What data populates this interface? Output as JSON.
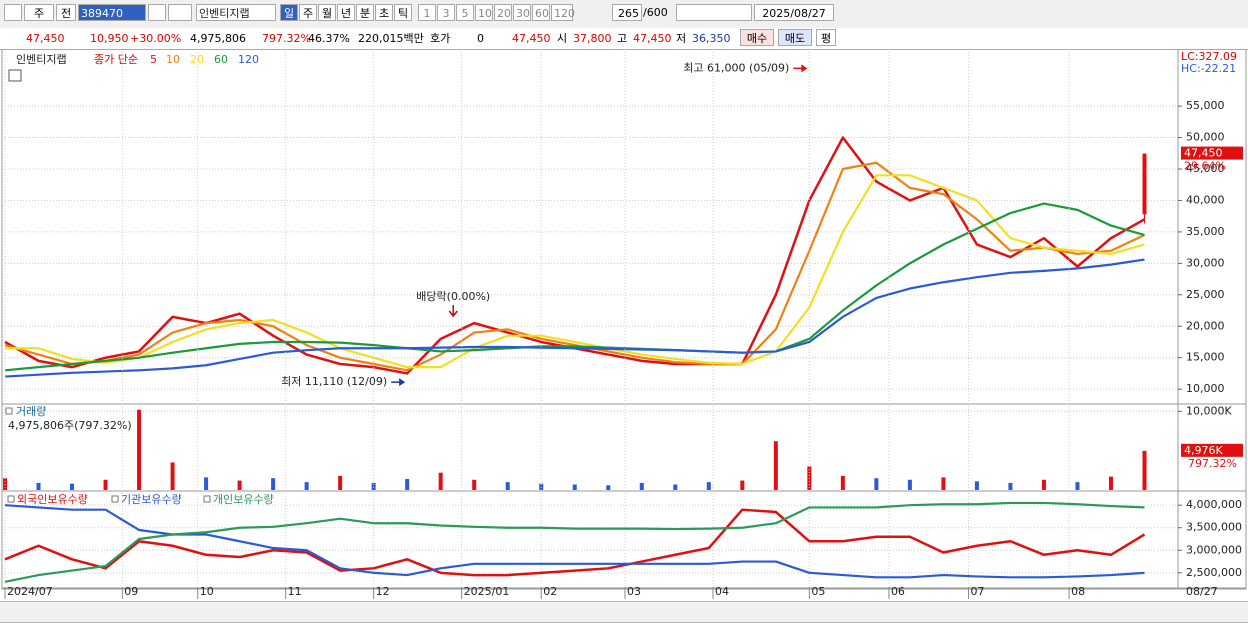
{
  "toolbar": {
    "market": "주",
    "prev": "전",
    "code": "389470",
    "name": "인벤티지랩",
    "periods": [
      "일",
      "주",
      "월",
      "년",
      "분",
      "초",
      "틱"
    ],
    "intervals": [
      "1",
      "3",
      "5",
      "10",
      "20",
      "30",
      "60",
      "120"
    ],
    "count": "265",
    "count_max": "/600",
    "date": "2025/08/27"
  },
  "infobar": {
    "price": "47,450",
    "change": "10,950",
    "change_pct": "+30.00%",
    "volume": "4,975,806",
    "volume_pct": "797.32%",
    "turnover": "46.37%",
    "amount": "220,015백만",
    "quote_label": "호가",
    "quote": "0",
    "quote_price": "47,450",
    "open_label": "시",
    "open": "37,800",
    "high_label": "고",
    "high": "47,450",
    "low_label": "저",
    "low": "36,350",
    "buy": "매수",
    "sell": "매도",
    "avg": "평"
  },
  "chart_data": [
    {
      "type": "line",
      "title": "인벤티지랩",
      "legend_prefix": "종가 단순",
      "lc": "LC:327.09",
      "hc": "HC:-22.21",
      "x": [
        0,
        8,
        16,
        24,
        32,
        40,
        48,
        56,
        64,
        72,
        80,
        88,
        96,
        104,
        112,
        120,
        128,
        136,
        144,
        152,
        160,
        168,
        176,
        184,
        192,
        200,
        208,
        216,
        224,
        232,
        240,
        248,
        256,
        264,
        272
      ],
      "xlim": [
        0,
        280
      ],
      "ylim": [
        7800,
        63600
      ],
      "yticks": [
        {
          "value": 55000,
          "label": "55,000"
        },
        {
          "value": 50000,
          "label": "50,000"
        },
        {
          "value": 45000,
          "label": "45,000"
        },
        {
          "value": 40000,
          "label": "40,000"
        },
        {
          "value": 35000,
          "label": "35,000"
        },
        {
          "value": 30000,
          "label": "30,000"
        },
        {
          "value": 25000,
          "label": "25,000"
        },
        {
          "value": 20000,
          "label": "20,000"
        },
        {
          "value": 15000,
          "label": "15,000"
        },
        {
          "value": 10000,
          "label": "10,000"
        }
      ],
      "series": [
        {
          "name": "5",
          "color": "#e01010",
          "values": [
            17500,
            14500,
            13500,
            15000,
            16000,
            21500,
            20500,
            22000,
            18500,
            15500,
            14000,
            13500,
            12500,
            18000,
            20500,
            19000,
            17500,
            16500,
            15500,
            14500,
            14000,
            14000,
            14000,
            25000,
            40000,
            50000,
            43000,
            40000,
            42000,
            33000,
            31000,
            34000,
            29500,
            34000,
            37000
          ]
        },
        {
          "name": "10",
          "color": "#f08010",
          "values": [
            17000,
            15500,
            14000,
            14500,
            15500,
            19000,
            20500,
            21000,
            20000,
            17000,
            15000,
            14000,
            13000,
            15500,
            19000,
            19500,
            18000,
            17000,
            16000,
            15000,
            14300,
            14000,
            14000,
            19500,
            32000,
            45000,
            46000,
            42000,
            41000,
            37000,
            32000,
            32500,
            31500,
            32000,
            34500
          ]
        },
        {
          "name": "20",
          "color": "#f0e020",
          "values": [
            16500,
            16500,
            14800,
            14200,
            15000,
            17500,
            19500,
            20500,
            21000,
            19000,
            16500,
            15000,
            13500,
            13500,
            16500,
            18500,
            18500,
            17500,
            16500,
            15500,
            14800,
            14200,
            14000,
            16000,
            23000,
            35000,
            44000,
            44000,
            42000,
            40000,
            34000,
            32500,
            32000,
            31500,
            33000
          ]
        },
        {
          "name": "60",
          "color": "#1a9a3a",
          "values": [
            13000,
            13500,
            14000,
            14500,
            15000,
            15800,
            16500,
            17200,
            17500,
            17500,
            17400,
            17000,
            16500,
            16000,
            16200,
            16500,
            16800,
            16800,
            16600,
            16400,
            16200,
            16000,
            15800,
            16000,
            18000,
            22500,
            26500,
            30000,
            33000,
            35500,
            38000,
            39500,
            38500,
            36000,
            34500
          ]
        },
        {
          "name": "120",
          "color": "#2a5ad8",
          "values": [
            12000,
            12300,
            12600,
            12800,
            13000,
            13300,
            13800,
            14800,
            15800,
            16200,
            16500,
            16500,
            16500,
            16600,
            16700,
            16700,
            16600,
            16500,
            16400,
            16300,
            16200,
            16000,
            15800,
            16000,
            17500,
            21500,
            24500,
            26000,
            27000,
            27800,
            28500,
            28800,
            29200,
            29800,
            30600
          ]
        }
      ],
      "last_candle": {
        "x": 272,
        "open": 37800,
        "high": 47450,
        "low": 36350,
        "close": 47450,
        "color": "#e01010"
      },
      "price_tag": {
        "value": 47450,
        "label": "47,450"
      },
      "price_tag_change": "29.64%",
      "annotations": [
        {
          "text": "최고 61,000 (05/09)",
          "x": 192,
          "y": 61000,
          "color": "#e01010"
        },
        {
          "text": "최저 11,110 (12/09)",
          "x": 96,
          "y": 11110,
          "color": "#1a3aa0"
        }
      ],
      "dividend_marker": {
        "text": "배당락(0.00%)",
        "x": 107
      }
    },
    {
      "type": "bar",
      "title": "거래량",
      "subtitle": "4,975,806주(797.32%)",
      "x": [
        0,
        8,
        16,
        24,
        32,
        40,
        48,
        56,
        64,
        72,
        80,
        88,
        96,
        104,
        112,
        120,
        128,
        136,
        144,
        152,
        160,
        168,
        176,
        184,
        192,
        200,
        208,
        216,
        224,
        232,
        240,
        248,
        256,
        264,
        272
      ],
      "xlim": [
        0,
        280
      ],
      "ylim": [
        0,
        10800
      ],
      "yticks": [
        {
          "value": 10000,
          "label": "10,000K"
        }
      ],
      "series": [
        {
          "name": "거래량",
          "values": [
            1500,
            900,
            800,
            1300,
            10200,
            3500,
            1600,
            1200,
            1500,
            1000,
            1800,
            900,
            1400,
            2200,
            1300,
            1000,
            800,
            700,
            600,
            900,
            700,
            1000,
            1200,
            6200,
            3000,
            1800,
            1500,
            1300,
            1600,
            1100,
            900,
            1300,
            1000,
            1700,
            4976
          ],
          "colors": [
            "#e01010",
            "#2a5ad8",
            "#2a5ad8",
            "#e01010",
            "#e01010",
            "#e01010",
            "#2a5ad8",
            "#e01010",
            "#2a5ad8",
            "#2a5ad8",
            "#e01010",
            "#2a5ad8",
            "#2a5ad8",
            "#e01010",
            "#e01010",
            "#2a5ad8",
            "#2a5ad8",
            "#2a5ad8",
            "#2a5ad8",
            "#2a5ad8",
            "#2a5ad8",
            "#2a5ad8",
            "#e01010",
            "#e01010",
            "#e01010",
            "#e01010",
            "#2a5ad8",
            "#2a5ad8",
            "#e01010",
            "#2a5ad8",
            "#2a5ad8",
            "#e01010",
            "#2a5ad8",
            "#e01010",
            "#e01010"
          ]
        }
      ],
      "value_tag": {
        "value": 4976,
        "label": "4,976K"
      },
      "value_tag_change": "797.32%"
    },
    {
      "type": "line",
      "x": [
        0,
        8,
        16,
        24,
        32,
        40,
        48,
        56,
        64,
        72,
        80,
        88,
        96,
        104,
        112,
        120,
        128,
        136,
        144,
        152,
        160,
        168,
        176,
        184,
        192,
        200,
        208,
        216,
        224,
        232,
        240,
        248,
        256,
        264,
        272
      ],
      "xlim": [
        0,
        280
      ],
      "ylim": [
        2230000,
        4270000
      ],
      "yticks": [
        {
          "value": 4000000,
          "label": "4,000,000"
        },
        {
          "value": 3500000,
          "label": "3,500,000"
        },
        {
          "value": 3000000,
          "label": "3,000,000"
        },
        {
          "value": 2500000,
          "label": "2,500,000"
        }
      ],
      "xticks": [
        {
          "value": 0,
          "label": "2024/07"
        },
        {
          "value": 28,
          "label": "09"
        },
        {
          "value": 46,
          "label": "10"
        },
        {
          "value": 67,
          "label": "11"
        },
        {
          "value": 88,
          "label": "12"
        },
        {
          "value": 109,
          "label": "2025/01"
        },
        {
          "value": 128,
          "label": "02"
        },
        {
          "value": 148,
          "label": "03"
        },
        {
          "value": 169,
          "label": "04"
        },
        {
          "value": 192,
          "label": "05"
        },
        {
          "value": 211,
          "label": "06"
        },
        {
          "value": 230,
          "label": "07"
        },
        {
          "value": 254,
          "label": "08"
        }
      ],
      "x_end_label": "08/27",
      "series": [
        {
          "name": "외국인보유수량",
          "color": "#e01010",
          "values": [
            2800000,
            3100000,
            2800000,
            2600000,
            3200000,
            3100000,
            2900000,
            2850000,
            3000000,
            2950000,
            2550000,
            2600000,
            2800000,
            2500000,
            2450000,
            2450000,
            2500000,
            2550000,
            2600000,
            2750000,
            2900000,
            3050000,
            3900000,
            3850000,
            3200000,
            3200000,
            3300000,
            3300000,
            2950000,
            3100000,
            3200000,
            2900000,
            3000000,
            2900000,
            3350000
          ]
        },
        {
          "name": "기관보유수량",
          "color": "#2a5ad8",
          "values": [
            4000000,
            3950000,
            3900000,
            3900000,
            3450000,
            3350000,
            3350000,
            3200000,
            3050000,
            3000000,
            2600000,
            2500000,
            2450000,
            2600000,
            2700000,
            2700000,
            2700000,
            2700000,
            2700000,
            2700000,
            2700000,
            2700000,
            2750000,
            2750000,
            2500000,
            2450000,
            2400000,
            2400000,
            2450000,
            2420000,
            2400000,
            2400000,
            2420000,
            2450000,
            2500000
          ]
        },
        {
          "name": "개인보유수량",
          "color": "#2a9a5a",
          "values": [
            2300000,
            2450000,
            2550000,
            2650000,
            3250000,
            3350000,
            3400000,
            3500000,
            3520000,
            3600000,
            3700000,
            3600000,
            3600000,
            3550000,
            3520000,
            3500000,
            3500000,
            3480000,
            3480000,
            3480000,
            3470000,
            3480000,
            3500000,
            3600000,
            3950000,
            3950000,
            3950000,
            4000000,
            4020000,
            4020000,
            4050000,
            4050000,
            4020000,
            3980000,
            3950000
          ]
        }
      ]
    }
  ]
}
